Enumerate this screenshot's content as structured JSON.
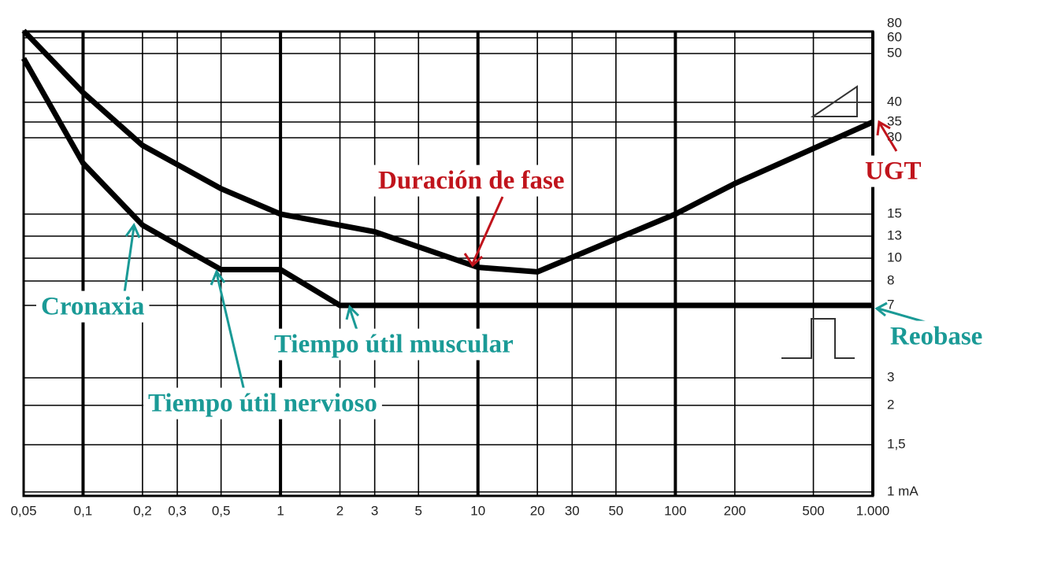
{
  "chart_data": {
    "type": "line",
    "xscale": "log",
    "xlim": [
      0.05,
      1000
    ],
    "xticks": [
      {
        "value": 0.05,
        "label": "0,05"
      },
      {
        "value": 0.1,
        "label": "0,1"
      },
      {
        "value": 0.2,
        "label": "0,2"
      },
      {
        "value": 0.3,
        "label": "0,3"
      },
      {
        "value": 0.5,
        "label": "0,5"
      },
      1,
      2,
      3,
      5,
      10,
      20,
      30,
      50,
      100,
      200,
      500,
      {
        "value": 1000,
        "label": "1.000"
      }
    ],
    "yticks": [
      80,
      60,
      50,
      40,
      35,
      30,
      15,
      13,
      10,
      8,
      7,
      3,
      2,
      {
        "value": 1.5,
        "label": "1,5"
      },
      {
        "value": 1,
        "label": "1 mA"
      }
    ],
    "grid": true,
    "series": [
      {
        "color": "#000000",
        "x": [
          0.05,
          0.1,
          0.2,
          0.5,
          1,
          3,
          10,
          20,
          100,
          200,
          1000
        ],
        "values": [
          70,
          42,
          28.5,
          20,
          15,
          13.4,
          9.2,
          8.8,
          15,
          21,
          35
        ]
      },
      {
        "color": "#000000",
        "x": [
          0.05,
          0.1,
          0.2,
          0.5,
          1,
          2,
          1000
        ],
        "values": [
          49,
          25,
          14,
          9,
          9,
          7,
          7
        ]
      }
    ],
    "annotations": [
      {
        "text": "Duración de fase",
        "color": "#c0141c"
      },
      {
        "text": "UGT",
        "color": "#c0141c"
      },
      {
        "text": "Cronaxia",
        "color": "#1a9a96"
      },
      {
        "text": "Tiempo útil nervioso",
        "color": "#1a9a96"
      },
      {
        "text": "Tiempo útil muscular",
        "color": "#1a9a96"
      },
      {
        "text": "Reobase",
        "color": "#1a9a96"
      }
    ]
  }
}
